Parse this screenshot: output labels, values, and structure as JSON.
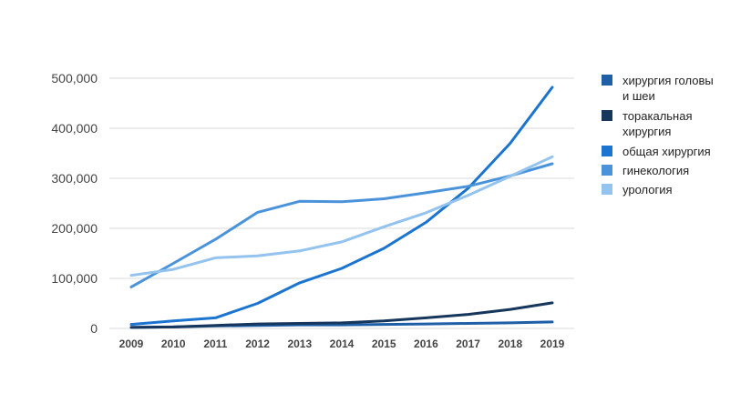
{
  "chart_data": {
    "type": "line",
    "title": "",
    "xlabel": "",
    "ylabel": "",
    "categories": [
      "2009",
      "2010",
      "2011",
      "2012",
      "2013",
      "2014",
      "2015",
      "2016",
      "2017",
      "2018",
      "2019"
    ],
    "y_ticks": [
      "0",
      "100,000",
      "200,000",
      "300,000",
      "400,000",
      "500,000"
    ],
    "ylim": [
      0,
      500000
    ],
    "grid": true,
    "legend_position": "right",
    "series": [
      {
        "name": "хирургия головы и шеи",
        "legend_lines": [
          "хирургия головы",
          "и шеи"
        ],
        "color": "#1f5fa8",
        "values": [
          2000,
          3000,
          5000,
          6000,
          7000,
          7000,
          8000,
          9000,
          10000,
          11000,
          13000
        ]
      },
      {
        "name": "торакальная хирургия",
        "legend_lines": [
          "торакальная",
          "хирургия"
        ],
        "color": "#16365c",
        "values": [
          2000,
          3000,
          6000,
          9000,
          10000,
          11000,
          15000,
          21000,
          28000,
          38000,
          51000
        ]
      },
      {
        "name": "общая хирургия",
        "legend_lines": [
          "общая хирургия"
        ],
        "color": "#1b74cf",
        "values": [
          8000,
          15000,
          21000,
          50000,
          91000,
          120000,
          160000,
          212000,
          280000,
          370000,
          482000
        ]
      },
      {
        "name": "гинекология",
        "legend_lines": [
          "гинекология"
        ],
        "color": "#4a93db",
        "values": [
          83000,
          130000,
          178000,
          232000,
          254000,
          253000,
          259000,
          271000,
          284000,
          305000,
          329000
        ]
      },
      {
        "name": "урология",
        "legend_lines": [
          "урология"
        ],
        "color": "#93c3ee",
        "values": [
          106000,
          118000,
          141000,
          145000,
          155000,
          173000,
          203000,
          231000,
          266000,
          304000,
          343000
        ]
      }
    ]
  }
}
